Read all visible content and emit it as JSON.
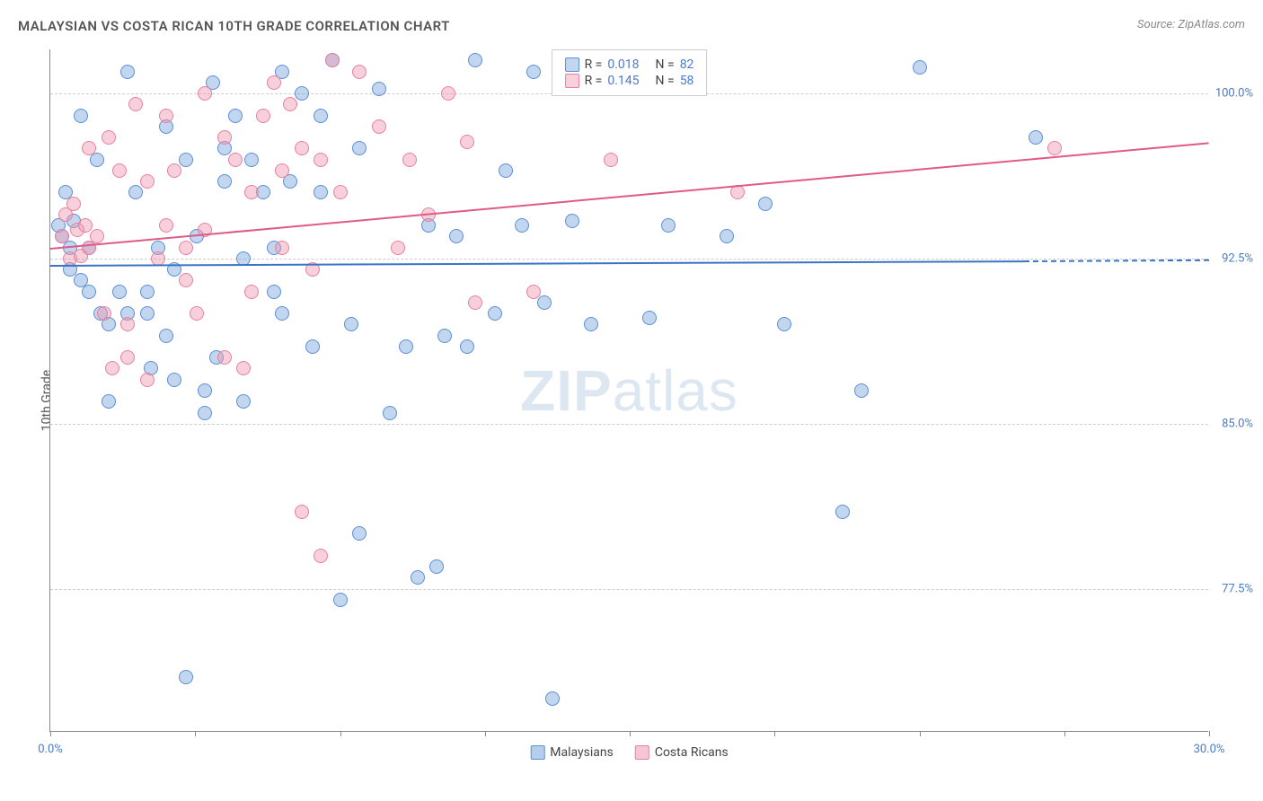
{
  "title": "MALAYSIAN VS COSTA RICAN 10TH GRADE CORRELATION CHART",
  "source": "Source: ZipAtlas.com",
  "ylabel": "10th Grade",
  "watermark_zip": "ZIP",
  "watermark_atlas": "atlas",
  "chart": {
    "type": "scatter",
    "xlim": [
      0,
      30
    ],
    "ylim": [
      71,
      102
    ],
    "xtick_positions": [
      0,
      3.75,
      7.5,
      11.25,
      15,
      18.75,
      22.5,
      26.25,
      30
    ],
    "xtick_labels_shown": {
      "0": "0.0%",
      "30": "30.0%"
    },
    "ytick_positions": [
      77.5,
      85.0,
      92.5,
      100.0
    ],
    "ytick_labels": [
      "77.5%",
      "85.0%",
      "92.5%",
      "100.0%"
    ],
    "grid_color": "#cccccc",
    "background_color": "#ffffff",
    "axis_color": "#888888",
    "label_color": "#4a7bc8",
    "point_radius": 8,
    "series": [
      {
        "name": "Malaysians",
        "fill": "rgba(120,165,220,0.45)",
        "stroke": "#5b8fd6",
        "trend_color": "#3b74c4",
        "r": "0.018",
        "n": "82",
        "trend": {
          "x1": 0,
          "y1": 92.2,
          "x2": 25.2,
          "y2": 92.4,
          "x2_dash": 30,
          "y2_dash": 92.45
        },
        "points": [
          [
            0.2,
            94.0
          ],
          [
            0.3,
            93.5
          ],
          [
            0.4,
            95.5
          ],
          [
            0.5,
            93.0
          ],
          [
            0.5,
            92.0
          ],
          [
            0.6,
            94.2
          ],
          [
            0.8,
            91.5
          ],
          [
            0.8,
            99.0
          ],
          [
            1.0,
            93.0
          ],
          [
            1.0,
            91.0
          ],
          [
            1.2,
            97.0
          ],
          [
            1.3,
            90.0
          ],
          [
            1.5,
            89.5
          ],
          [
            1.5,
            86.0
          ],
          [
            1.8,
            91.0
          ],
          [
            2.0,
            101.0
          ],
          [
            2.0,
            90.0
          ],
          [
            2.2,
            95.5
          ],
          [
            2.5,
            91.0
          ],
          [
            2.5,
            90.0
          ],
          [
            2.6,
            87.5
          ],
          [
            2.8,
            93.0
          ],
          [
            3.0,
            98.5
          ],
          [
            3.0,
            89.0
          ],
          [
            3.2,
            92.0
          ],
          [
            3.2,
            87.0
          ],
          [
            3.5,
            97.0
          ],
          [
            3.5,
            73.5
          ],
          [
            3.8,
            93.5
          ],
          [
            4.0,
            86.5
          ],
          [
            4.0,
            85.5
          ],
          [
            4.2,
            100.5
          ],
          [
            4.3,
            88.0
          ],
          [
            4.5,
            97.5
          ],
          [
            4.5,
            96.0
          ],
          [
            4.8,
            99.0
          ],
          [
            5.0,
            92.5
          ],
          [
            5.0,
            86.0
          ],
          [
            5.2,
            97.0
          ],
          [
            5.5,
            95.5
          ],
          [
            5.8,
            91.0
          ],
          [
            5.8,
            93.0
          ],
          [
            6.0,
            101.0
          ],
          [
            6.0,
            90.0
          ],
          [
            6.2,
            96.0
          ],
          [
            6.5,
            100.0
          ],
          [
            6.8,
            88.5
          ],
          [
            7.0,
            99.0
          ],
          [
            7.0,
            95.5
          ],
          [
            7.3,
            101.5
          ],
          [
            7.5,
            77.0
          ],
          [
            7.8,
            89.5
          ],
          [
            8.0,
            80.0
          ],
          [
            8.0,
            97.5
          ],
          [
            8.5,
            100.2
          ],
          [
            8.8,
            85.5
          ],
          [
            9.2,
            88.5
          ],
          [
            9.5,
            78.0
          ],
          [
            9.8,
            94.0
          ],
          [
            10.0,
            78.5
          ],
          [
            10.2,
            89.0
          ],
          [
            10.5,
            93.5
          ],
          [
            10.8,
            88.5
          ],
          [
            11.0,
            101.5
          ],
          [
            11.5,
            90.0
          ],
          [
            11.8,
            96.5
          ],
          [
            12.2,
            94.0
          ],
          [
            12.5,
            101.0
          ],
          [
            12.8,
            90.5
          ],
          [
            13.0,
            72.5
          ],
          [
            13.5,
            94.2
          ],
          [
            14.0,
            89.5
          ],
          [
            14.5,
            101.2
          ],
          [
            15.5,
            89.8
          ],
          [
            16.0,
            94.0
          ],
          [
            17.5,
            93.5
          ],
          [
            18.5,
            95.0
          ],
          [
            19.0,
            89.5
          ],
          [
            20.5,
            81.0
          ],
          [
            21.0,
            86.5
          ],
          [
            22.5,
            101.2
          ],
          [
            25.5,
            98.0
          ]
        ]
      },
      {
        "name": "Costa Ricans",
        "fill": "rgba(240,150,175,0.45)",
        "stroke": "#e8809f",
        "trend_color": "#e05a86",
        "r": "0.145",
        "n": "58",
        "trend": {
          "x1": 0,
          "y1": 93.0,
          "x2": 30,
          "y2": 97.8
        },
        "points": [
          [
            0.3,
            93.5
          ],
          [
            0.4,
            94.5
          ],
          [
            0.5,
            92.5
          ],
          [
            0.6,
            95.0
          ],
          [
            0.7,
            93.8
          ],
          [
            0.8,
            92.6
          ],
          [
            0.9,
            94.0
          ],
          [
            1.0,
            93.0
          ],
          [
            1.0,
            97.5
          ],
          [
            1.2,
            93.5
          ],
          [
            1.4,
            90.0
          ],
          [
            1.5,
            98.0
          ],
          [
            1.6,
            87.5
          ],
          [
            1.8,
            96.5
          ],
          [
            2.0,
            88.0
          ],
          [
            2.0,
            89.5
          ],
          [
            2.2,
            99.5
          ],
          [
            2.5,
            87.0
          ],
          [
            2.5,
            96.0
          ],
          [
            2.8,
            92.5
          ],
          [
            3.0,
            99.0
          ],
          [
            3.0,
            94.0
          ],
          [
            3.2,
            96.5
          ],
          [
            3.5,
            91.5
          ],
          [
            3.5,
            93.0
          ],
          [
            3.8,
            90.0
          ],
          [
            4.0,
            93.8
          ],
          [
            4.0,
            100.0
          ],
          [
            4.5,
            88.0
          ],
          [
            4.5,
            98.0
          ],
          [
            4.8,
            97.0
          ],
          [
            5.0,
            87.5
          ],
          [
            5.2,
            91.0
          ],
          [
            5.2,
            95.5
          ],
          [
            5.5,
            99.0
          ],
          [
            5.8,
            100.5
          ],
          [
            6.0,
            93.0
          ],
          [
            6.0,
            96.5
          ],
          [
            6.2,
            99.5
          ],
          [
            6.5,
            97.5
          ],
          [
            6.5,
            81.0
          ],
          [
            6.8,
            92.0
          ],
          [
            7.0,
            79.0
          ],
          [
            7.0,
            97.0
          ],
          [
            7.3,
            101.5
          ],
          [
            7.5,
            95.5
          ],
          [
            8.0,
            101.0
          ],
          [
            8.5,
            98.5
          ],
          [
            9.0,
            93.0
          ],
          [
            9.3,
            97.0
          ],
          [
            9.8,
            94.5
          ],
          [
            10.3,
            100.0
          ],
          [
            10.8,
            97.8
          ],
          [
            11.0,
            90.5
          ],
          [
            12.5,
            91.0
          ],
          [
            14.5,
            97.0
          ],
          [
            17.8,
            95.5
          ],
          [
            26.0,
            97.5
          ]
        ]
      }
    ],
    "legend_bottom": [
      {
        "label": "Malaysians",
        "fill": "rgba(120,165,220,0.55)",
        "stroke": "#5b8fd6"
      },
      {
        "label": "Costa Ricans",
        "fill": "rgba(240,150,175,0.55)",
        "stroke": "#e8809f"
      }
    ]
  }
}
